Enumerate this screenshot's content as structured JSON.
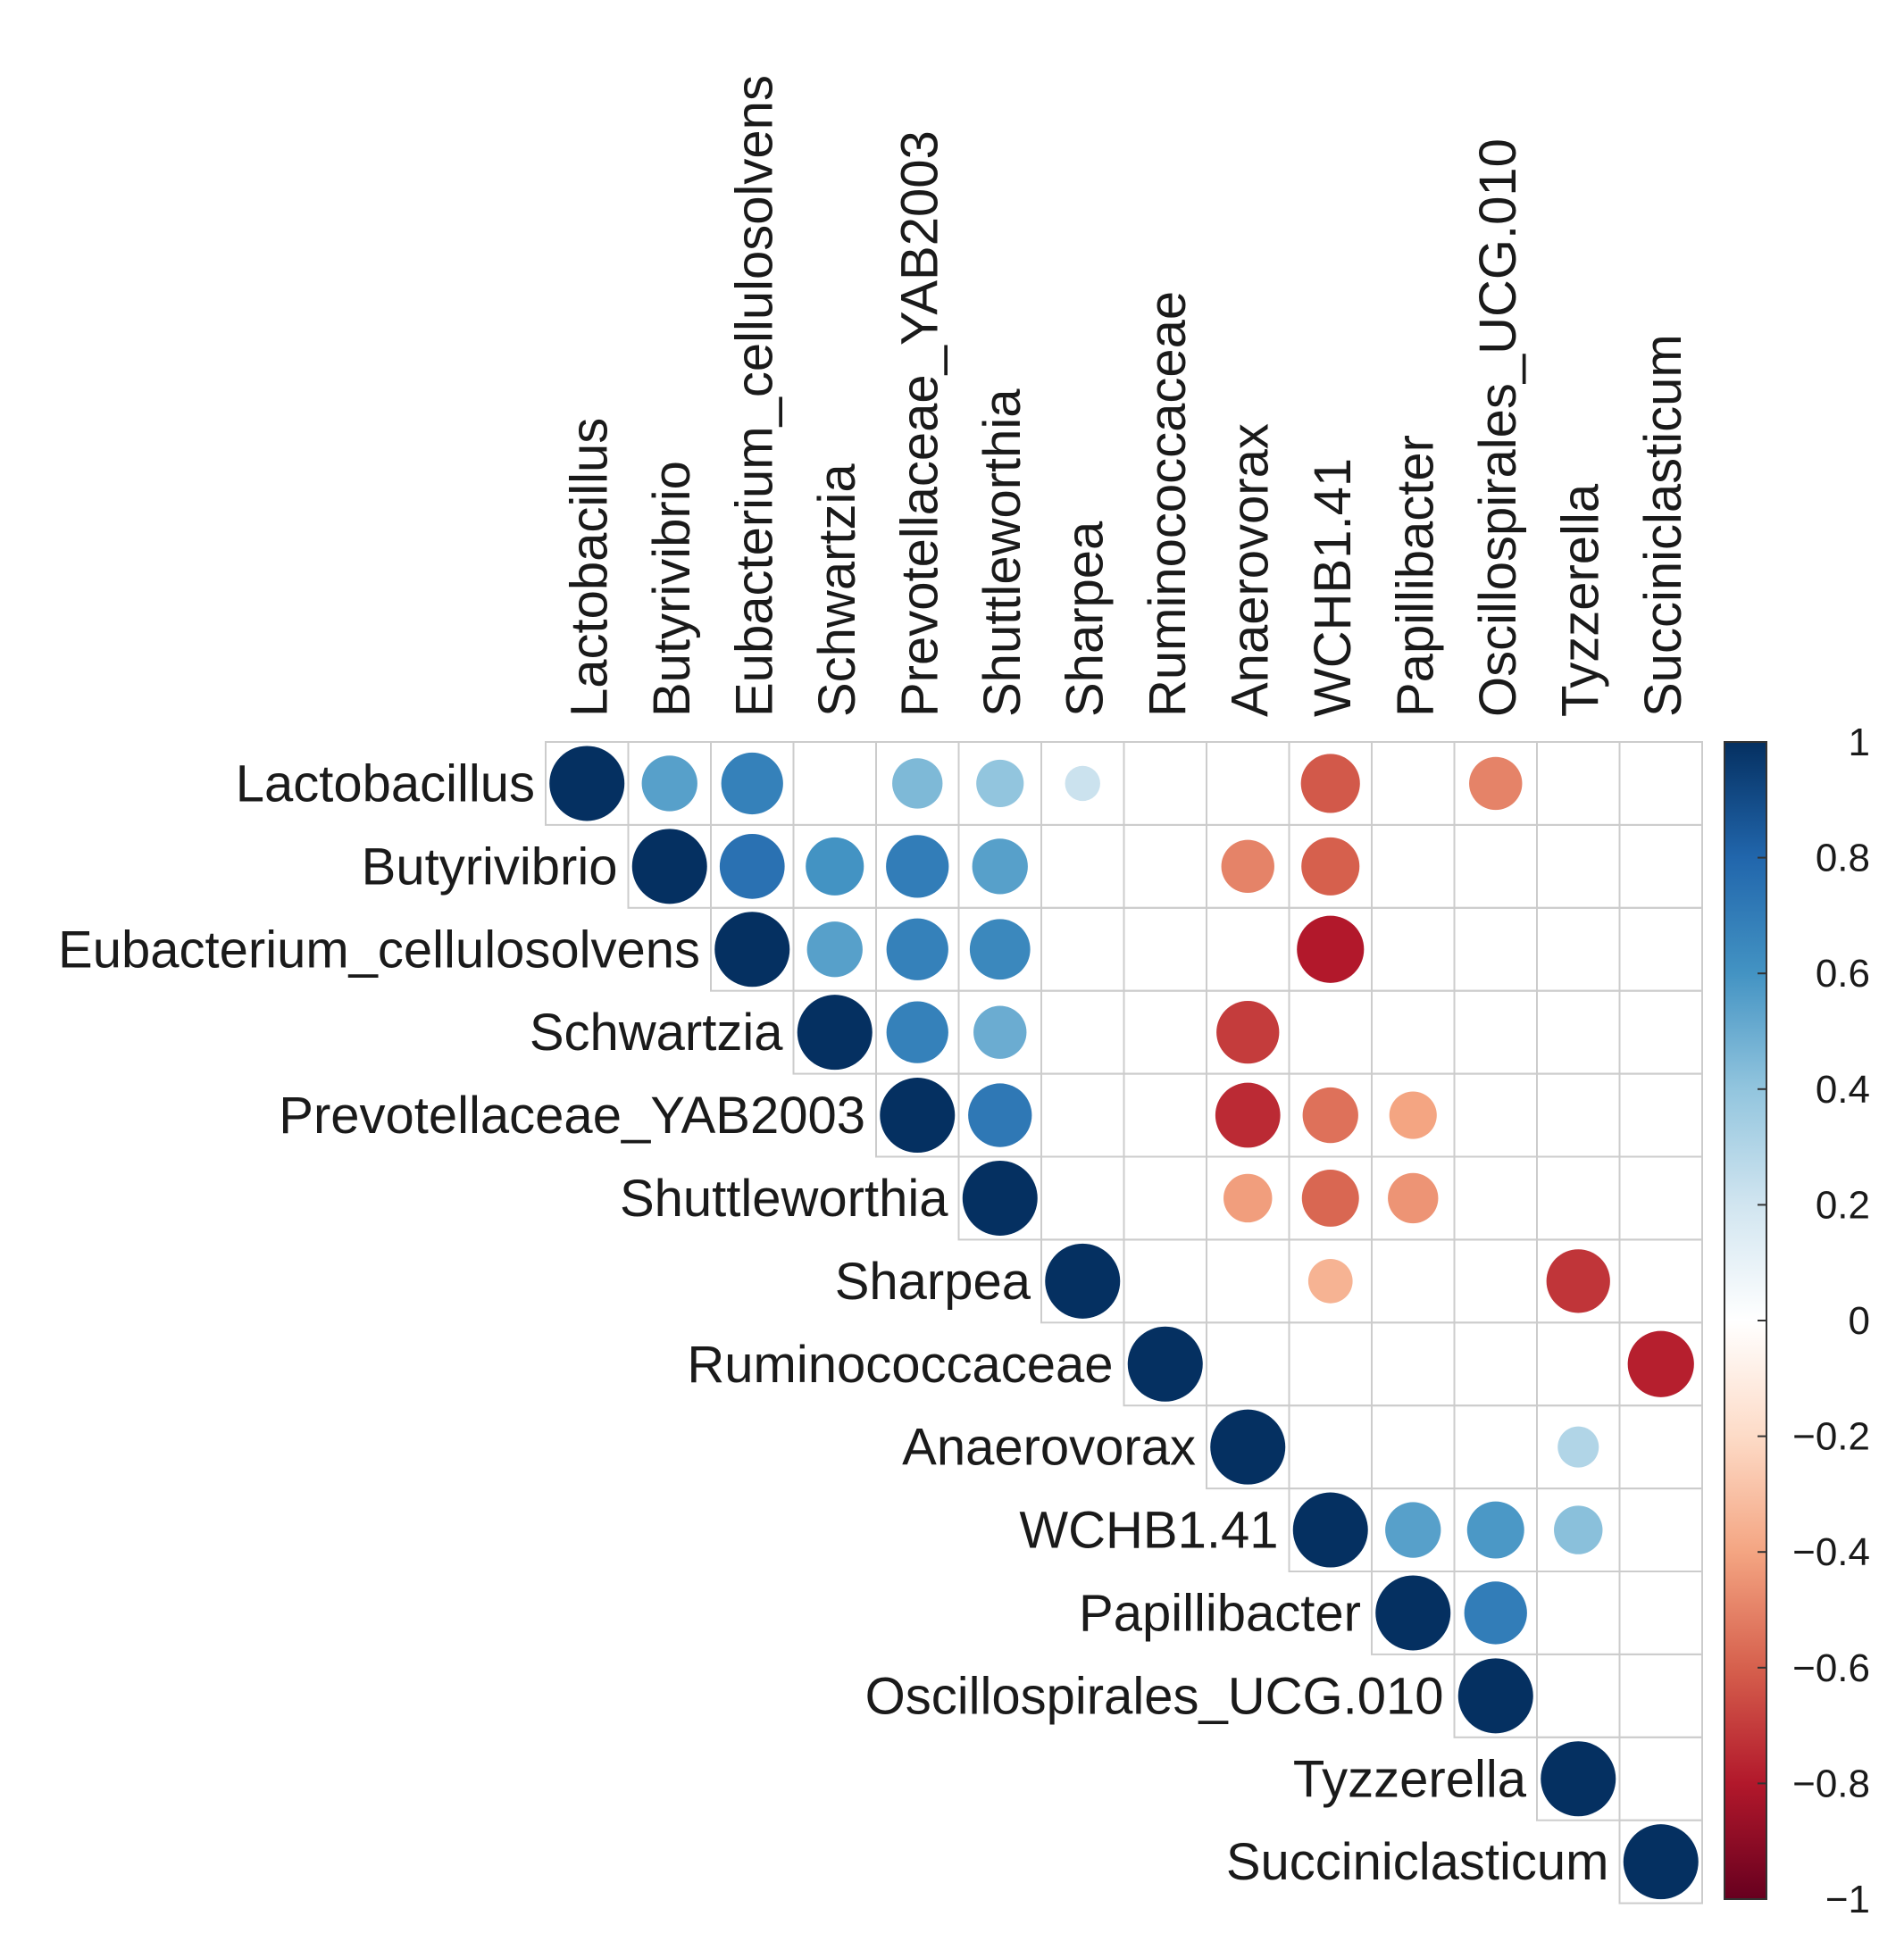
{
  "chart_data": {
    "type": "heatmap",
    "subtype": "correlation-circle-upper-triangle",
    "variables": [
      "Lactobacillus",
      "Butyrivibrio",
      "Eubacterium_cellulosolvens",
      "Schwartzia",
      "Prevotellaceae_YAB2003",
      "Shuttleworthia",
      "Sharpea",
      "Ruminococcaceae",
      "Anaerovorax",
      "WCHB1.41",
      "Papillibacter",
      "Oscillospirales_UCG.010",
      "Tyzzerella",
      "Succiniclasticum"
    ],
    "cells": [
      {
        "row": 0,
        "col": 0,
        "value": 1.0
      },
      {
        "row": 0,
        "col": 1,
        "value": 0.55
      },
      {
        "row": 0,
        "col": 2,
        "value": 0.68
      },
      {
        "row": 0,
        "col": 4,
        "value": 0.45
      },
      {
        "row": 0,
        "col": 5,
        "value": 0.4
      },
      {
        "row": 0,
        "col": 6,
        "value": 0.22
      },
      {
        "row": 0,
        "col": 9,
        "value": -0.62
      },
      {
        "row": 0,
        "col": 11,
        "value": -0.5
      },
      {
        "row": 1,
        "col": 1,
        "value": 1.0
      },
      {
        "row": 1,
        "col": 2,
        "value": 0.75
      },
      {
        "row": 1,
        "col": 3,
        "value": 0.6
      },
      {
        "row": 1,
        "col": 4,
        "value": 0.7
      },
      {
        "row": 1,
        "col": 5,
        "value": 0.55
      },
      {
        "row": 1,
        "col": 8,
        "value": -0.5
      },
      {
        "row": 1,
        "col": 9,
        "value": -0.6
      },
      {
        "row": 2,
        "col": 2,
        "value": 1.0
      },
      {
        "row": 2,
        "col": 3,
        "value": 0.55
      },
      {
        "row": 2,
        "col": 4,
        "value": 0.68
      },
      {
        "row": 2,
        "col": 5,
        "value": 0.65
      },
      {
        "row": 2,
        "col": 9,
        "value": -0.8
      },
      {
        "row": 3,
        "col": 3,
        "value": 1.0
      },
      {
        "row": 3,
        "col": 4,
        "value": 0.68
      },
      {
        "row": 3,
        "col": 5,
        "value": 0.5
      },
      {
        "row": 3,
        "col": 8,
        "value": -0.7
      },
      {
        "row": 4,
        "col": 4,
        "value": 1.0
      },
      {
        "row": 4,
        "col": 5,
        "value": 0.72
      },
      {
        "row": 4,
        "col": 8,
        "value": -0.75
      },
      {
        "row": 4,
        "col": 9,
        "value": -0.55
      },
      {
        "row": 4,
        "col": 10,
        "value": -0.4
      },
      {
        "row": 5,
        "col": 5,
        "value": 1.0
      },
      {
        "row": 5,
        "col": 8,
        "value": -0.42
      },
      {
        "row": 5,
        "col": 9,
        "value": -0.58
      },
      {
        "row": 5,
        "col": 10,
        "value": -0.45
      },
      {
        "row": 6,
        "col": 6,
        "value": 1.0
      },
      {
        "row": 6,
        "col": 9,
        "value": -0.35
      },
      {
        "row": 6,
        "col": 12,
        "value": -0.72
      },
      {
        "row": 7,
        "col": 7,
        "value": 1.0
      },
      {
        "row": 7,
        "col": 13,
        "value": -0.78
      },
      {
        "row": 8,
        "col": 8,
        "value": 1.0
      },
      {
        "row": 8,
        "col": 12,
        "value": 0.3
      },
      {
        "row": 9,
        "col": 9,
        "value": 1.0
      },
      {
        "row": 9,
        "col": 10,
        "value": 0.55
      },
      {
        "row": 9,
        "col": 11,
        "value": 0.58
      },
      {
        "row": 9,
        "col": 12,
        "value": 0.42
      },
      {
        "row": 10,
        "col": 10,
        "value": 1.0
      },
      {
        "row": 10,
        "col": 11,
        "value": 0.7
      },
      {
        "row": 11,
        "col": 11,
        "value": 1.0
      },
      {
        "row": 12,
        "col": 12,
        "value": 1.0
      },
      {
        "row": 13,
        "col": 13,
        "value": 1.0
      }
    ],
    "colorbar": {
      "ticks": [
        "1",
        "0.8",
        "0.6",
        "0.4",
        "0.2",
        "0",
        "−0.2",
        "−0.4",
        "−0.6",
        "−0.8",
        "−1"
      ],
      "tick_values": [
        1,
        0.8,
        0.6,
        0.4,
        0.2,
        0,
        -0.2,
        -0.4,
        -0.6,
        -0.8,
        -1
      ],
      "range": [
        -1,
        1
      ],
      "colors": [
        "#67001F",
        "#B2182B",
        "#D6604D",
        "#F4A582",
        "#FDDBC7",
        "#FFFFFF",
        "#D1E5F0",
        "#92C5DE",
        "#4393C3",
        "#2166AC",
        "#053061"
      ]
    },
    "grid": true,
    "legend": "right",
    "grid_color": "#cccccc"
  }
}
